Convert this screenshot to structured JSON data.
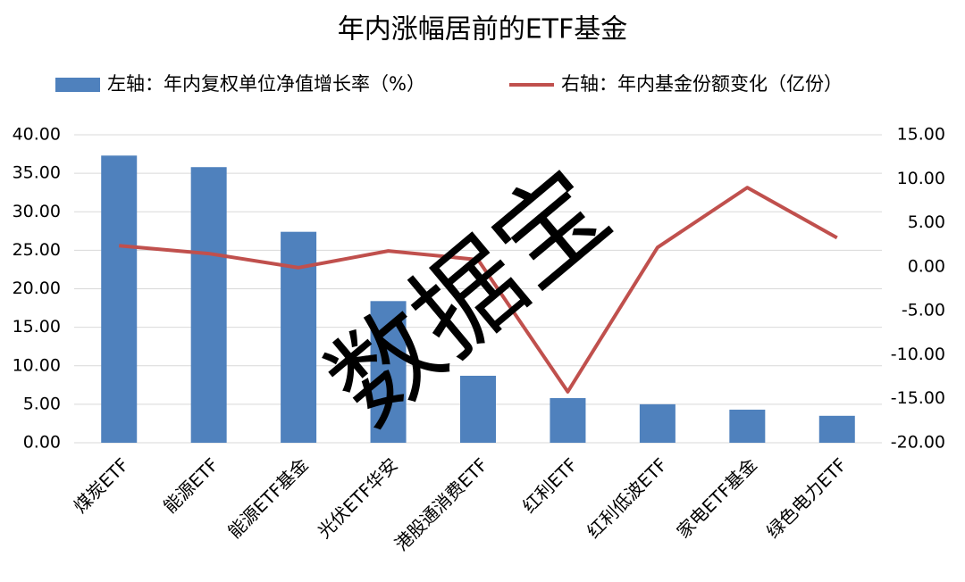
{
  "chart_data": {
    "type": "bar-line",
    "title": "年内涨幅居前的ETF基金",
    "watermark": "数据宝",
    "categories": [
      "煤炭ETF",
      "能源ETF",
      "能源ETF基金",
      "光伏ETF华安",
      "港股通消费ETF",
      "红利ETF",
      "红利低波ETF",
      "家电ETF基金",
      "绿色电力ETF"
    ],
    "series": [
      {
        "name": "左轴：年内复权单位净值增长率（%）",
        "type": "bar",
        "color": "#4f81bd",
        "axis": "y",
        "values": [
          37.3,
          35.8,
          27.4,
          18.4,
          8.7,
          5.8,
          5.0,
          4.3,
          3.5
        ]
      },
      {
        "name": "右轴：年内基金份额变化（亿份）",
        "type": "line",
        "color": "#c0504d",
        "axis": "y2",
        "values": [
          2.4,
          1.5,
          -0.1,
          1.8,
          0.8,
          -14.2,
          2.2,
          9.0,
          3.3
        ]
      }
    ],
    "ylim": [
      0,
      40
    ],
    "yticks": [
      {
        "value": 0,
        "label": "0.00"
      },
      {
        "value": 5,
        "label": "5.00"
      },
      {
        "value": 10,
        "label": "10.00"
      },
      {
        "value": 15,
        "label": "15.00"
      },
      {
        "value": 20,
        "label": "20.00"
      },
      {
        "value": 25,
        "label": "25.00"
      },
      {
        "value": 30,
        "label": "30.00"
      },
      {
        "value": 35,
        "label": "35.00"
      },
      {
        "value": 40,
        "label": "40.00"
      }
    ],
    "y2lim": [
      -20,
      15
    ],
    "y2ticks": [
      {
        "value": -20,
        "label": "-20.00"
      },
      {
        "value": -15,
        "label": "-15.00"
      },
      {
        "value": -10,
        "label": "-10.00"
      },
      {
        "value": -5,
        "label": "-5.00"
      },
      {
        "value": 0,
        "label": "0.00"
      },
      {
        "value": 5,
        "label": "5.00"
      },
      {
        "value": 10,
        "label": "10.00"
      },
      {
        "value": 15,
        "label": "15.00"
      }
    ],
    "grid": true,
    "legend": "top"
  }
}
